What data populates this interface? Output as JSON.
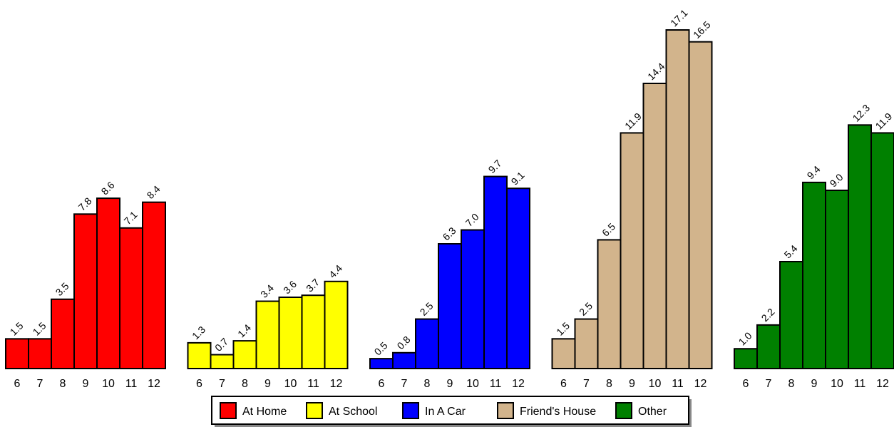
{
  "chart_data": {
    "type": "bar",
    "categories": [
      "6",
      "7",
      "8",
      "9",
      "10",
      "11",
      "12"
    ],
    "series": [
      {
        "name": "At Home",
        "color": "#ff0000",
        "values": [
          1.5,
          1.5,
          3.5,
          7.8,
          8.6,
          7.1,
          8.4
        ],
        "value_labels": [
          "1.5",
          "1.5",
          "3.5",
          "7.8",
          "8.6",
          "7.1",
          "8.4"
        ]
      },
      {
        "name": "At School",
        "color": "#ffff00",
        "values": [
          1.3,
          0.7,
          1.4,
          3.4,
          3.6,
          3.7,
          4.4
        ],
        "value_labels": [
          "1.3",
          "0.7",
          "1.4",
          "3.4",
          "3.6",
          "3.7",
          "4.4"
        ]
      },
      {
        "name": "In A Car",
        "color": "#0000ff",
        "values": [
          0.5,
          0.8,
          2.5,
          6.3,
          7.0,
          9.7,
          9.1
        ],
        "value_labels": [
          "0.5",
          "0.8",
          "2.5",
          "6.3",
          "7.0",
          "9.7",
          "9.1"
        ]
      },
      {
        "name": "Friend's House",
        "color": "#d2b48c",
        "values": [
          1.5,
          2.5,
          6.5,
          11.9,
          14.4,
          17.1,
          16.5
        ],
        "value_labels": [
          "1.5",
          "2.5",
          "6.5",
          "11.9",
          "14.4",
          "17.1",
          "16.5"
        ]
      },
      {
        "name": "Other",
        "color": "#008000",
        "values": [
          1.0,
          2.2,
          5.4,
          9.4,
          9.0,
          12.3,
          11.9
        ],
        "value_labels": [
          "1.0",
          "2.2",
          "5.4",
          "9.4",
          "9.0",
          "12.3",
          "11.9"
        ]
      }
    ]
  }
}
